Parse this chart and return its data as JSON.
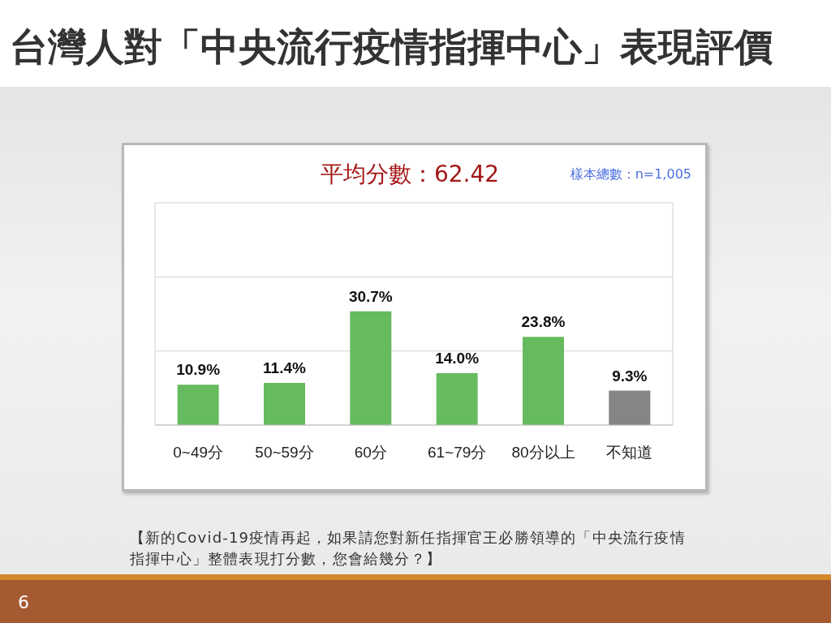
{
  "chart_data": {
    "type": "bar",
    "title": "台灣人對「中央流行疫情指揮中心」表現評價",
    "subtitle": "平均分數：62.42",
    "annotations": [
      "樣本總數：n=1,005",
      "【新的Covid-19疫情再起，如果請您對新任指揮官王必勝領導的「中央流行疫情指揮中心」整體表現打分數，您會給幾分？】",
      "6"
    ],
    "categories": [
      "0~49分",
      "50~59分",
      "60分",
      "61~79分",
      "80分以上",
      "不知道"
    ],
    "values": [
      10.9,
      11.4,
      30.7,
      14.0,
      23.8,
      9.3
    ],
    "colors": [
      "#66bb5f",
      "#66bb5f",
      "#66bb5f",
      "#66bb5f",
      "#66bb5f",
      "#858585"
    ],
    "value_labels": [
      "10.9%",
      "11.4%",
      "30.7%",
      "14.0%",
      "23.8%",
      "9.3%"
    ],
    "ylim": [
      0,
      60
    ],
    "yticks": [
      {
        "value": 0,
        "label": null
      },
      {
        "value": 20,
        "label": null
      },
      {
        "value": 40,
        "label": null
      },
      {
        "value": 60,
        "label": null
      }
    ],
    "grid": "y",
    "tick_labels": "x"
  }
}
